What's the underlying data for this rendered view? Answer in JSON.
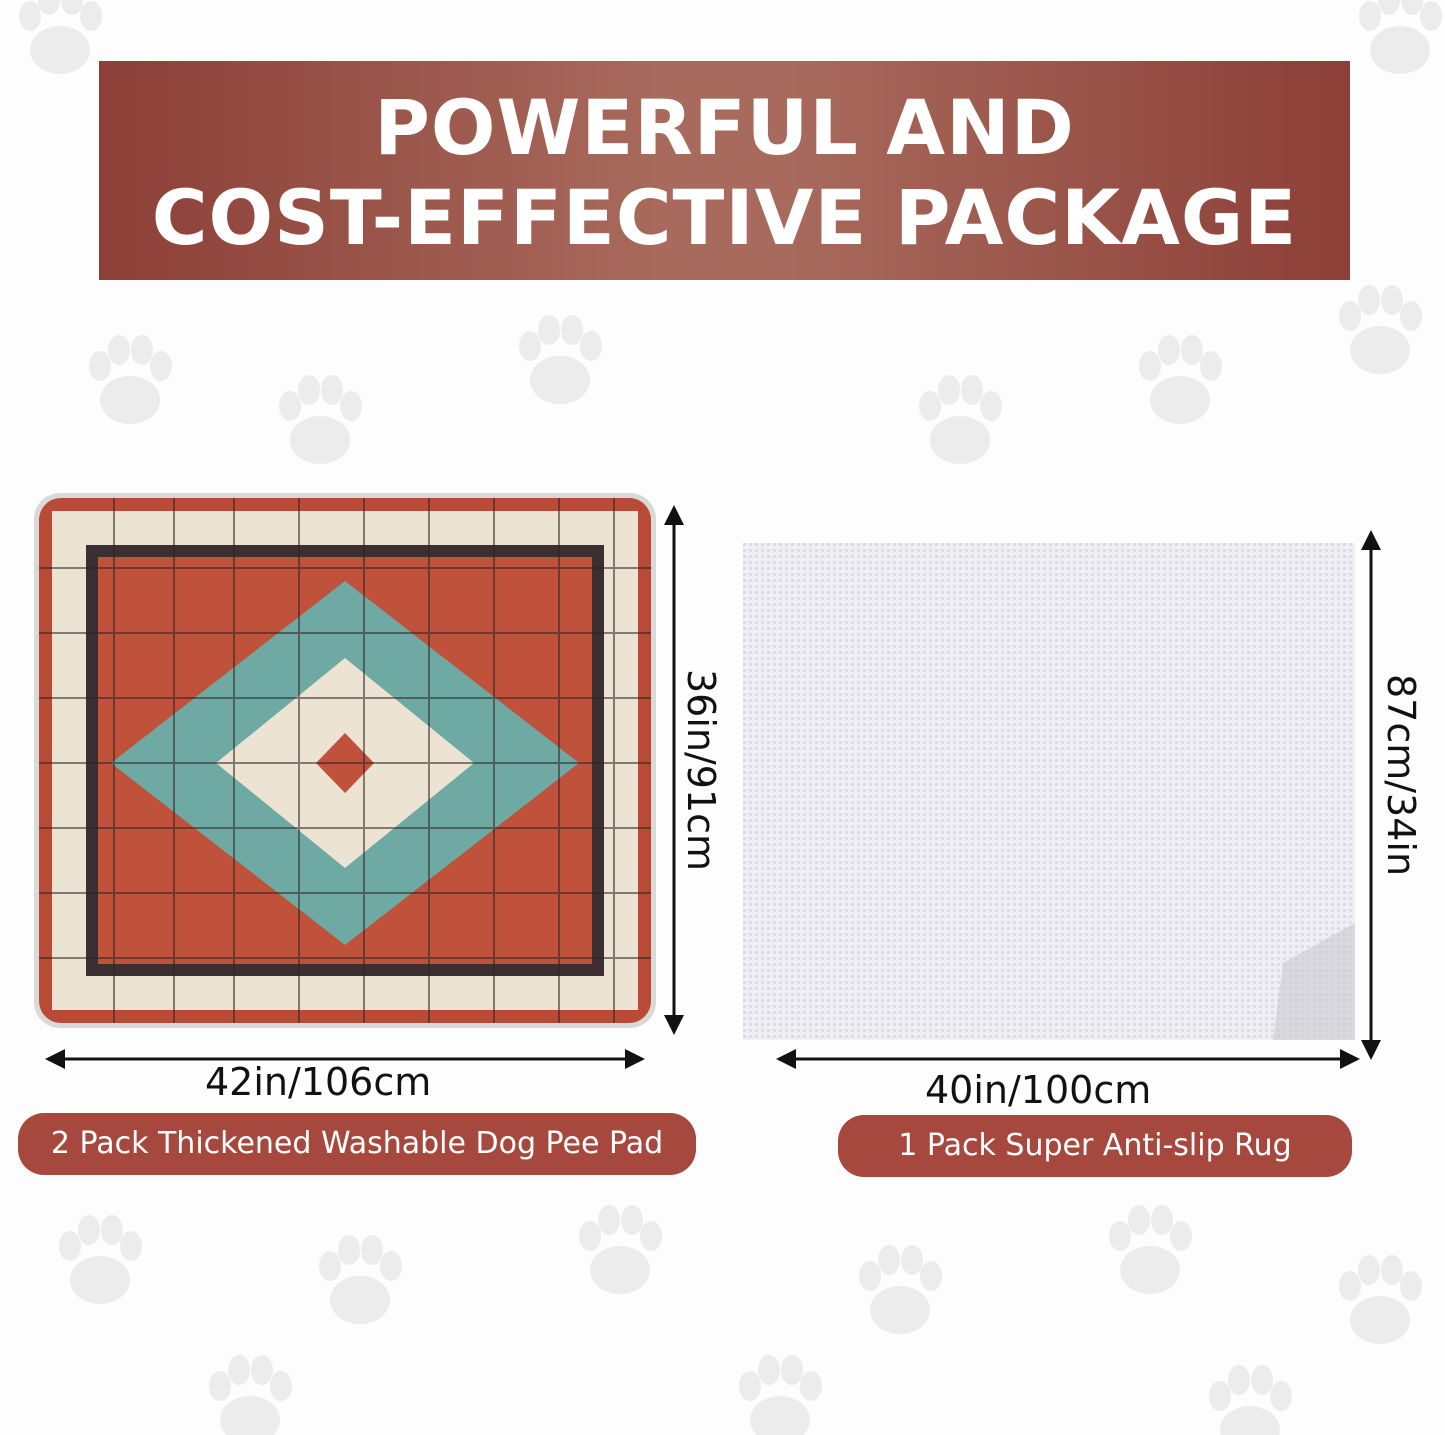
{
  "banner": {
    "line1": "POWERFUL AND",
    "line2": "COST-EFFECTIVE PACKAGE"
  },
  "left_product": {
    "width_label": "42in/106cm",
    "height_label": "36in/91cm",
    "caption": "2 Pack Thickened Washable Dog Pee Pad"
  },
  "right_product": {
    "width_label": "40in/100cm",
    "height_label": "87cm/34in",
    "caption": "1 Pack Super Anti-slip Rug"
  },
  "colors": {
    "banner": "#8c3f36",
    "caption_bg": "#a6483e",
    "rug_red": "#c0513a",
    "rug_teal": "#6fa9a3",
    "rug_cream": "#ece3d2"
  }
}
